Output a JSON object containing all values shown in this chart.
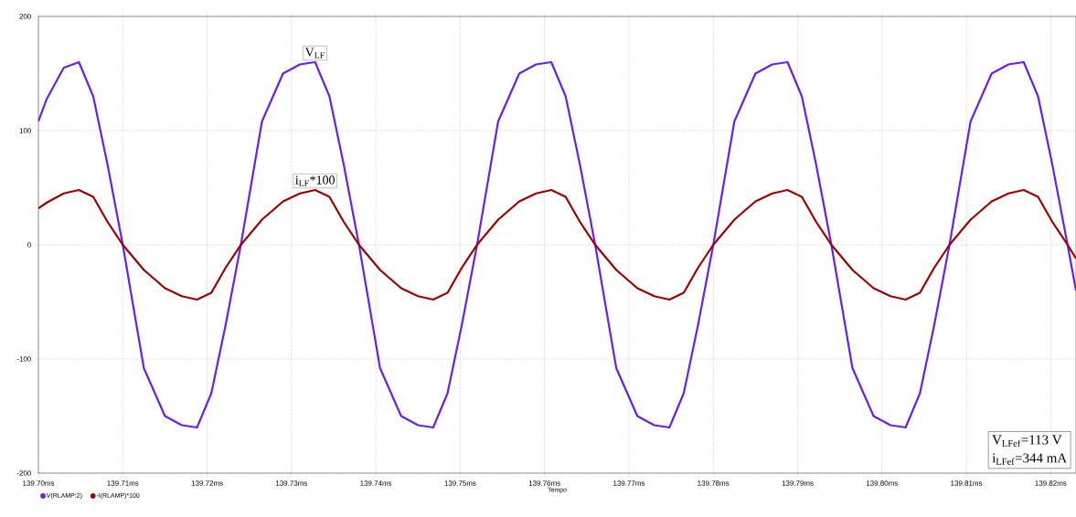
{
  "chart_data": {
    "type": "line",
    "xlabel": "Tempo",
    "x": [
      139.7,
      139.701,
      139.703,
      139.7048,
      139.7065,
      139.7082,
      139.71,
      139.7125,
      139.715,
      139.717,
      139.7188,
      139.7205,
      139.7222,
      139.724,
      139.7265,
      139.729,
      139.731,
      139.7328,
      139.7345,
      139.7362,
      139.738,
      139.7405,
      139.743,
      139.745,
      139.7468,
      139.7485,
      139.7502,
      139.752,
      139.7545,
      139.757,
      139.759,
      139.7608,
      139.7625,
      139.7642,
      139.766,
      139.7685,
      139.771,
      139.773,
      139.7748,
      139.7765,
      139.7782,
      139.78,
      139.7825,
      139.785,
      139.787,
      139.7888,
      139.7905,
      139.7922,
      139.794,
      139.7965,
      139.799,
      139.801,
      139.8028,
      139.8045,
      139.8062,
      139.808,
      139.8105,
      139.813,
      139.815,
      139.8168,
      139.8185,
      139.8202,
      139.822,
      139.823
    ],
    "series": [
      {
        "name": "V(RLAMP:2)",
        "color": "#6a1ef0",
        "values": [
          108,
          128,
          155,
          160,
          130,
          70,
          0,
          -108,
          -150,
          -158,
          -160,
          -130,
          -70,
          0,
          108,
          150,
          158,
          160,
          130,
          70,
          0,
          -108,
          -150,
          -158,
          -160,
          -130,
          -70,
          0,
          108,
          150,
          158,
          160,
          130,
          70,
          0,
          -108,
          -150,
          -158,
          -160,
          -130,
          -70,
          0,
          108,
          150,
          158,
          160,
          130,
          70,
          0,
          -108,
          -150,
          -158,
          -160,
          -130,
          -70,
          0,
          108,
          150,
          158,
          160,
          130,
          70,
          0,
          -40
        ]
      },
      {
        "name": "-I(RLAMP)*100",
        "color": "#a00000",
        "values": [
          32,
          37,
          45,
          48,
          42,
          20,
          0,
          -22,
          -38,
          -45,
          -48,
          -42,
          -20,
          0,
          22,
          38,
          45,
          48,
          42,
          20,
          0,
          -22,
          -38,
          -45,
          -48,
          -42,
          -20,
          0,
          22,
          38,
          45,
          48,
          42,
          20,
          0,
          -22,
          -38,
          -45,
          -48,
          -42,
          -20,
          0,
          22,
          38,
          45,
          48,
          42,
          20,
          0,
          -22,
          -38,
          -45,
          -48,
          -42,
          -20,
          0,
          22,
          38,
          45,
          48,
          42,
          20,
          0,
          -12
        ]
      }
    ],
    "xlim": [
      139.7,
      139.823
    ],
    "xticks": [
      {
        "value": 139.7,
        "label": "139.70ms"
      },
      {
        "value": 139.71,
        "label": "139.71ms"
      },
      {
        "value": 139.72,
        "label": "139.72ms"
      },
      {
        "value": 139.73,
        "label": "139.73ms"
      },
      {
        "value": 139.74,
        "label": "139.74ms"
      },
      {
        "value": 139.75,
        "label": "139.75ms"
      },
      {
        "value": 139.76,
        "label": "139.76ms"
      },
      {
        "value": 139.77,
        "label": "139.77ms"
      },
      {
        "value": 139.78,
        "label": "139.78ms"
      },
      {
        "value": 139.79,
        "label": "139.79ms"
      },
      {
        "value": 139.8,
        "label": "139.80ms"
      },
      {
        "value": 139.81,
        "label": "139.81ms"
      },
      {
        "value": 139.82,
        "label": "139.82ms"
      }
    ],
    "ylim": [
      -200,
      200
    ],
    "yticks": [
      -200,
      -100,
      0,
      100,
      200
    ],
    "grid": true,
    "legend": "bottom left",
    "annotations": [
      {
        "text": "V$_{LF}$",
        "x": 139.7328,
        "y": 160
      },
      {
        "text": "i$_{LF}$*100",
        "x": 139.7328,
        "y": 48
      },
      "V$_{LFef}$=113 V",
      "i$_{LFef}$=344 mA"
    ]
  }
}
